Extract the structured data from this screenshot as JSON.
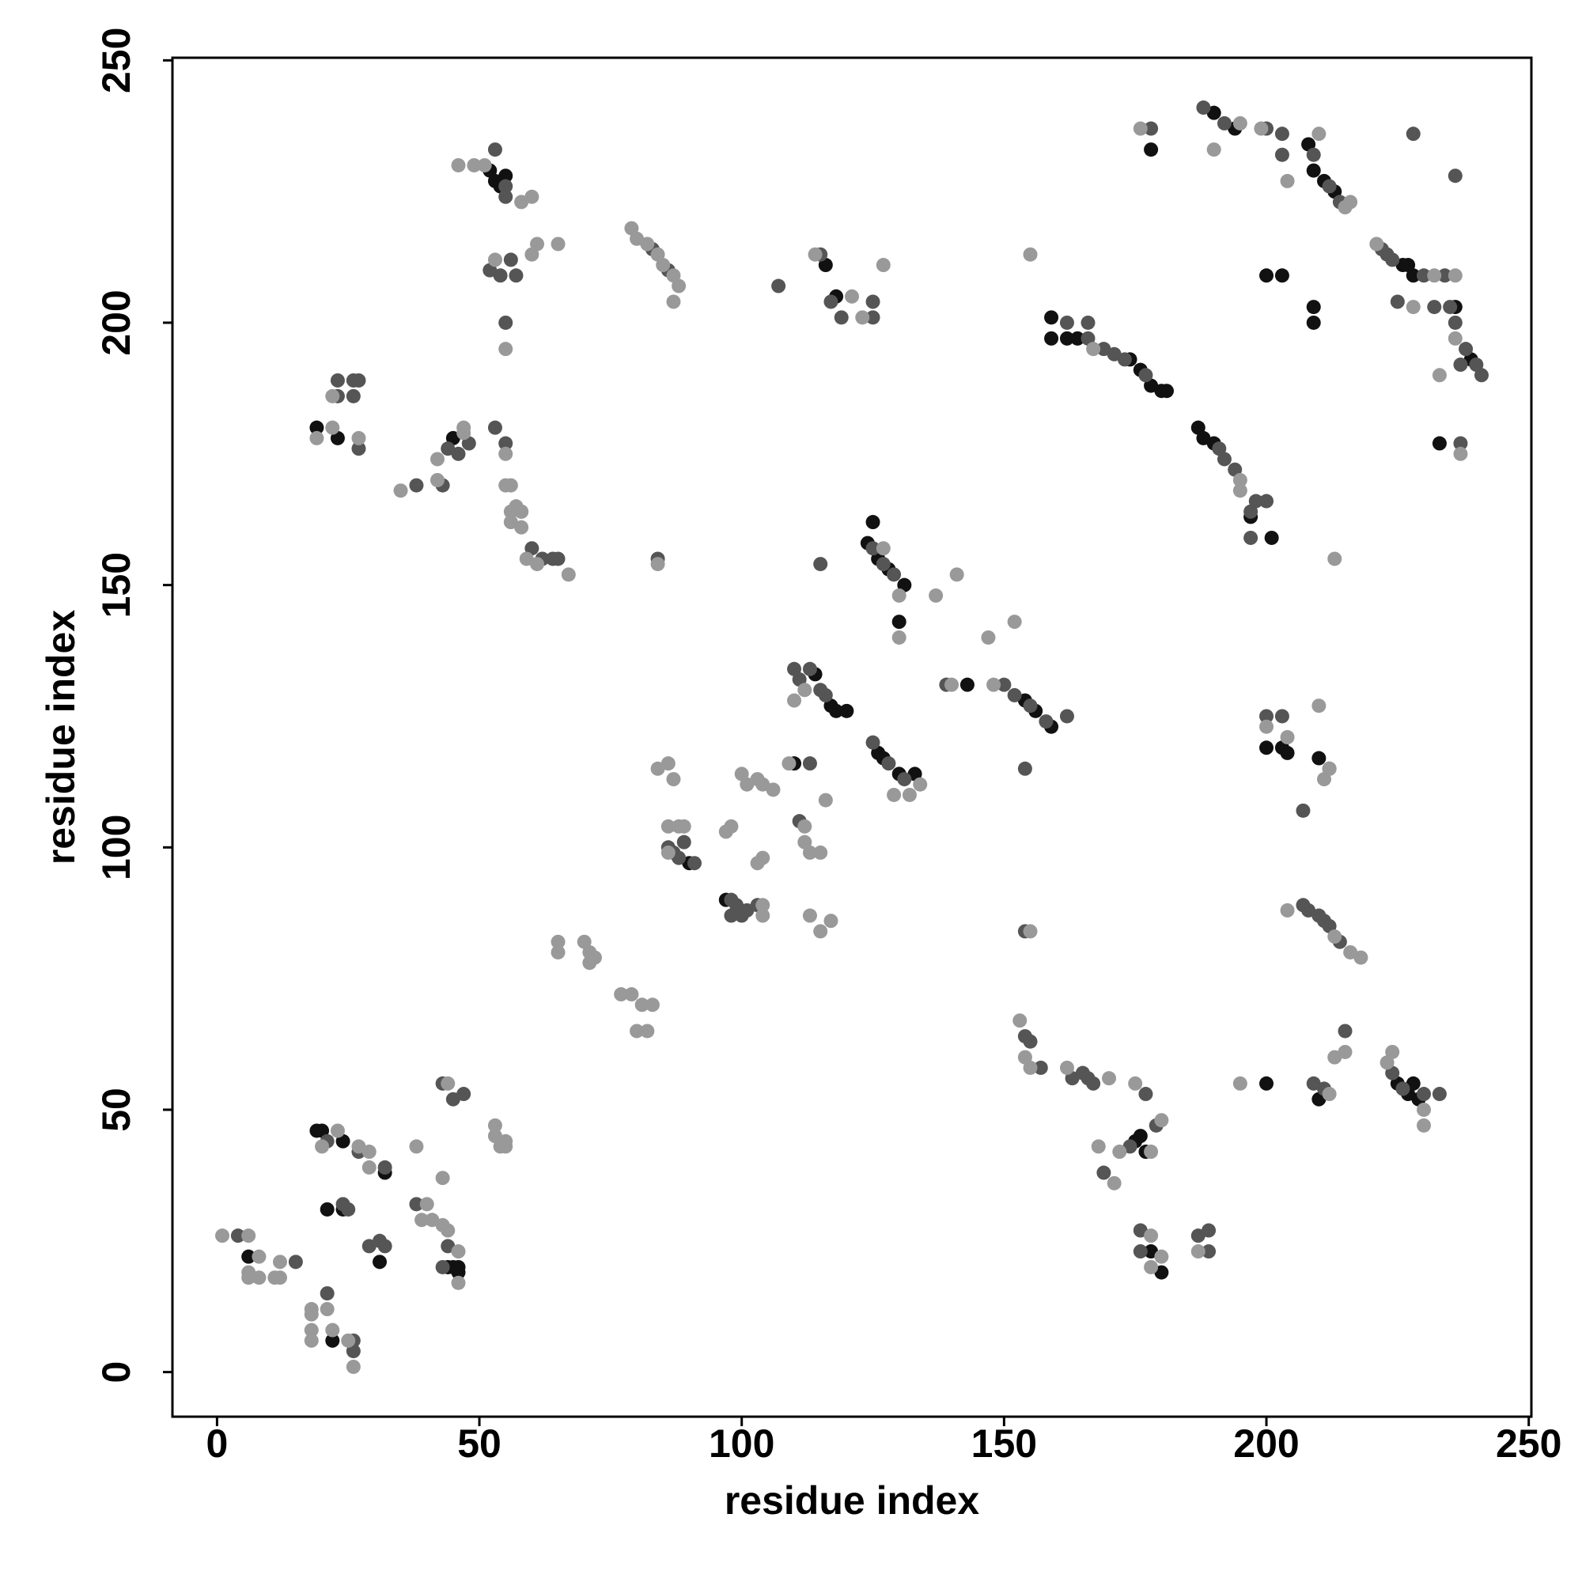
{
  "chart_data": {
    "type": "scatter",
    "x_label": "residue index",
    "y_label": "residue index",
    "xlim": [
      -8.5,
      250.5
    ],
    "ylim": [
      -8.5,
      250.5
    ],
    "xticks": [
      0,
      50,
      100,
      150,
      200,
      250
    ],
    "yticks": [
      0,
      50,
      100,
      150,
      200,
      250
    ],
    "series": [
      {
        "color": "#111111",
        "x": [
          6,
          19,
          20,
          24,
          32,
          21,
          24,
          31,
          22,
          44,
          45,
          46,
          46,
          52,
          53,
          55,
          54,
          19,
          23,
          45,
          114,
          117,
          118,
          120,
          126,
          127,
          130,
          133,
          124,
          126,
          128,
          131,
          125,
          130,
          143,
          154,
          156,
          159,
          116,
          118,
          110,
          90,
          97,
          159,
          159,
          162,
          164,
          174,
          176,
          178,
          180,
          181,
          187,
          188,
          190,
          197,
          201,
          178,
          190,
          194,
          208,
          209,
          211,
          213,
          200,
          203,
          209,
          209,
          226,
          227,
          228,
          236,
          239,
          233,
          200,
          203,
          204,
          210,
          175,
          176,
          177,
          178,
          180,
          200,
          210,
          225,
          227,
          228,
          229
        ],
        "y": [
          22,
          46,
          46,
          44,
          38,
          31,
          31,
          21,
          6,
          20,
          20,
          19,
          20,
          229,
          227,
          228,
          226,
          180,
          178,
          178,
          133,
          127,
          126,
          126,
          118,
          117,
          114,
          114,
          158,
          155,
          153,
          150,
          162,
          143,
          131,
          128,
          126,
          123,
          211,
          205,
          116,
          97,
          90,
          201,
          197,
          197,
          197,
          193,
          191,
          188,
          187,
          187,
          180,
          178,
          177,
          163,
          159,
          233,
          240,
          237,
          234,
          229,
          227,
          225,
          209,
          209,
          203,
          200,
          211,
          211,
          209,
          203,
          193,
          177,
          119,
          119,
          118,
          117,
          44,
          45,
          42,
          23,
          19,
          55,
          52,
          55,
          53,
          55,
          52
        ]
      },
      {
        "color": "#555555",
        "x": [
          4,
          15,
          21,
          27,
          32,
          24,
          25,
          29,
          31,
          32,
          26,
          26,
          21,
          38,
          43,
          44,
          43,
          45,
          47,
          86,
          87,
          88,
          89,
          91,
          98,
          98,
          99,
          100,
          101,
          103,
          111,
          113,
          115,
          116,
          110,
          111,
          113,
          125,
          128,
          131,
          125,
          127,
          129,
          115,
          139,
          150,
          152,
          155,
          158,
          162,
          154,
          154,
          23,
          26,
          27,
          26,
          23,
          27,
          38,
          43,
          44,
          46,
          48,
          53,
          55,
          58,
          60,
          62,
          64,
          65,
          84,
          53,
          55,
          56,
          57,
          52,
          54,
          55,
          55,
          83,
          86,
          107,
          115,
          117,
          119,
          125,
          125,
          162,
          166,
          166,
          169,
          171,
          173,
          177,
          191,
          192,
          194,
          197,
          198,
          200,
          197,
          178,
          188,
          192,
          200,
          203,
          203,
          209,
          212,
          214,
          228,
          222,
          223,
          224,
          230,
          234,
          225,
          232,
          235,
          236,
          237,
          238,
          240,
          241,
          236,
          237,
          200,
          203,
          212,
          207,
          207,
          208,
          210,
          211,
          212,
          214,
          154,
          155,
          157,
          163,
          165,
          166,
          167,
          177,
          169,
          174,
          179,
          176,
          176,
          187,
          189,
          189,
          209,
          211,
          215,
          224,
          226,
          230,
          233
        ],
        "y": [
          26,
          21,
          44,
          42,
          39,
          32,
          31,
          24,
          25,
          24,
          6,
          4,
          15,
          32,
          20,
          24,
          55,
          52,
          53,
          100,
          99,
          98,
          101,
          97,
          90,
          87,
          89,
          87,
          88,
          89,
          132,
          134,
          130,
          129,
          134,
          105,
          116,
          120,
          116,
          113,
          157,
          154,
          152,
          154,
          131,
          131,
          129,
          127,
          124,
          125,
          115,
          84,
          189,
          189,
          189,
          186,
          186,
          176,
          169,
          169,
          176,
          175,
          177,
          180,
          177,
          164,
          157,
          155,
          155,
          155,
          155,
          233,
          226,
          212,
          209,
          210,
          209,
          200,
          224,
          214,
          210,
          207,
          213,
          204,
          201,
          204,
          201,
          200,
          200,
          197,
          195,
          194,
          193,
          190,
          176,
          174,
          172,
          164,
          166,
          166,
          159,
          237,
          241,
          238,
          237,
          236,
          232,
          232,
          226,
          223,
          236,
          214,
          213,
          212,
          209,
          209,
          204,
          203,
          203,
          200,
          192,
          195,
          192,
          190,
          228,
          177,
          125,
          125,
          115,
          107,
          89,
          88,
          87,
          86,
          85,
          82,
          64,
          63,
          58,
          56,
          57,
          56,
          55,
          53,
          38,
          43,
          47,
          27,
          23,
          26,
          27,
          23,
          55,
          54,
          65,
          57,
          54,
          53,
          53
        ]
      },
      {
        "color": "#999999",
        "x": [
          1,
          6,
          6,
          6,
          8,
          8,
          11,
          12,
          12,
          20,
          23,
          27,
          29,
          29,
          38,
          18,
          18,
          21,
          18,
          18,
          22,
          25,
          26,
          40,
          39,
          41,
          43,
          44,
          46,
          46,
          43,
          44,
          53,
          53,
          54,
          55,
          55,
          65,
          65,
          70,
          71,
          71,
          72,
          77,
          79,
          81,
          83,
          80,
          82,
          84,
          86,
          87,
          86,
          88,
          89,
          86,
          104,
          104,
          97,
          98,
          100,
          101,
          103,
          104,
          106,
          103,
          104,
          109,
          112,
          112,
          113,
          115,
          113,
          115,
          117,
          116,
          112,
          110,
          134,
          129,
          132,
          127,
          130,
          130,
          140,
          148,
          137,
          141,
          147,
          152,
          155,
          19,
          22,
          22,
          27,
          35,
          42,
          42,
          47,
          47,
          55,
          55,
          56,
          56,
          57,
          58,
          56,
          58,
          59,
          61,
          67,
          84,
          46,
          49,
          51,
          58,
          60,
          53,
          55,
          60,
          61,
          65,
          79,
          80,
          82,
          84,
          85,
          87,
          88,
          87,
          114,
          121,
          123,
          127,
          167,
          155,
          195,
          195,
          176,
          195,
          190,
          199,
          204,
          210,
          215,
          216,
          221,
          232,
          236,
          228,
          236,
          233,
          237,
          200,
          204,
          211,
          212,
          210,
          213,
          204,
          213,
          216,
          218,
          153,
          154,
          155,
          162,
          170,
          175,
          168,
          171,
          172,
          178,
          180,
          178,
          178,
          180,
          187,
          195,
          212,
          213,
          215,
          223,
          224,
          230,
          230
        ],
        "y": [
          26,
          26,
          19,
          18,
          22,
          18,
          18,
          21,
          18,
          43,
          46,
          43,
          42,
          39,
          43,
          12,
          11,
          12,
          8,
          6,
          8,
          6,
          1,
          32,
          29,
          29,
          28,
          27,
          23,
          17,
          37,
          55,
          45,
          47,
          43,
          44,
          43,
          82,
          80,
          82,
          80,
          78,
          79,
          72,
          72,
          70,
          70,
          65,
          65,
          115,
          116,
          113,
          104,
          104,
          104,
          99,
          87,
          89,
          103,
          104,
          114,
          112,
          113,
          112,
          111,
          97,
          98,
          116,
          104,
          101,
          99,
          99,
          87,
          84,
          86,
          109,
          130,
          128,
          112,
          110,
          110,
          157,
          148,
          140,
          131,
          131,
          148,
          152,
          140,
          143,
          84,
          178,
          186,
          180,
          178,
          168,
          170,
          174,
          179,
          180,
          175,
          169,
          169,
          164,
          165,
          164,
          162,
          161,
          155,
          154,
          152,
          154,
          230,
          230,
          230,
          223,
          224,
          212,
          195,
          213,
          215,
          215,
          218,
          216,
          215,
          213,
          211,
          209,
          207,
          204,
          213,
          205,
          201,
          211,
          195,
          213,
          170,
          168,
          237,
          238,
          233,
          237,
          227,
          236,
          222,
          223,
          215,
          209,
          209,
          203,
          197,
          190,
          175,
          123,
          121,
          113,
          115,
          127,
          155,
          88,
          83,
          80,
          79,
          67,
          60,
          58,
          58,
          56,
          55,
          43,
          36,
          42,
          42,
          48,
          26,
          20,
          22,
          23,
          55,
          53,
          60,
          61,
          59,
          61,
          50,
          47
        ]
      }
    ]
  }
}
